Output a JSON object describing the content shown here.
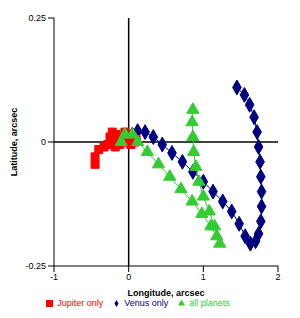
{
  "chart_data": {
    "type": "scatter",
    "x_label": "Longitude, arcsec",
    "y_label": "Latitude, arcsec",
    "xlim": [
      -1,
      2
    ],
    "xticks": [
      -1,
      0,
      1,
      2
    ],
    "ylim": [
      -0.25,
      0.25
    ],
    "yticks": [
      -0.25,
      0,
      0.25
    ],
    "legend": "bottom",
    "series": [
      {
        "name": "Venus only",
        "color": "#000080",
        "marker": "diamond",
        "line_style": "solid",
        "x": [
          0,
          0.05,
          0.12,
          0.22,
          0.33,
          0.45,
          0.58,
          0.72,
          0.86,
          1.0,
          1.13,
          1.26,
          1.38,
          1.48,
          1.56,
          1.63,
          1.7,
          1.74,
          1.77,
          1.78,
          1.78,
          1.77,
          1.76,
          1.74,
          1.72,
          1.68,
          1.62,
          1.55,
          1.45
        ],
        "values": [
          0,
          0.015,
          0.022,
          0.02,
          0.01,
          -0.005,
          -0.022,
          -0.04,
          -0.06,
          -0.08,
          -0.1,
          -0.12,
          -0.14,
          -0.165,
          -0.19,
          -0.205,
          -0.2,
          -0.185,
          -0.16,
          -0.13,
          -0.1,
          -0.07,
          -0.04,
          -0.01,
          0.02,
          0.05,
          0.075,
          0.095,
          0.11
        ]
      },
      {
        "name": "Jupiter only",
        "color": "#ff0000",
        "marker": "square",
        "line_style": "solid",
        "x": [
          -0.45,
          -0.45,
          -0.4,
          -0.33,
          -0.28,
          -0.25,
          -0.22,
          -0.17,
          -0.15,
          -0.18,
          -0.12,
          -0.08,
          -0.05,
          0.0,
          -0.02,
          0.03,
          0.08,
          0.1,
          0.05,
          0.0
        ],
        "values": [
          -0.045,
          -0.03,
          -0.015,
          -0.01,
          -0.005,
          0.01,
          0.02,
          0.015,
          0.0,
          -0.01,
          -0.005,
          0.01,
          0.02,
          0.015,
          0.0,
          -0.005,
          0.0,
          0.005,
          0.01,
          0.0
        ]
      },
      {
        "name": "all planets",
        "color": "#33cc33",
        "marker": "triangle",
        "line_style": "solid",
        "x": [
          -0.1,
          -0.05,
          0.05,
          0.12,
          0.25,
          0.4,
          0.55,
          0.7,
          0.85,
          0.98,
          1.1,
          1.18,
          1.22,
          1.15,
          1.08,
          1.0,
          0.94,
          0.9,
          0.87,
          0.86,
          0.85,
          0.86
        ],
        "values": [
          0.0,
          0.015,
          0.015,
          0.0,
          -0.02,
          -0.045,
          -0.07,
          -0.095,
          -0.12,
          -0.145,
          -0.17,
          -0.19,
          -0.205,
          -0.17,
          -0.14,
          -0.11,
          -0.08,
          -0.05,
          -0.02,
          0.01,
          0.04,
          0.065
        ]
      }
    ]
  }
}
